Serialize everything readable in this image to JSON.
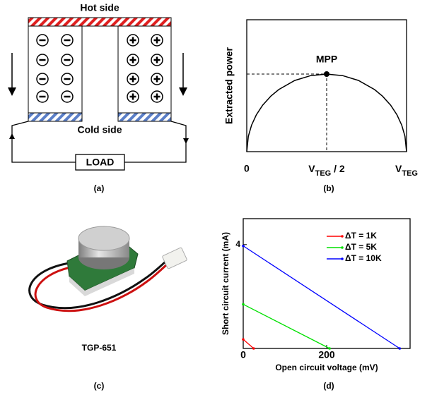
{
  "panel_labels": [
    "(a)",
    "(b)",
    "(c)",
    "(d)"
  ],
  "diagram_a": {
    "hot_side": "Hot side",
    "cold_side": "Cold side",
    "load": "LOAD"
  },
  "photo_c": {
    "caption": "TGP-651"
  },
  "chart_data": [
    {
      "type": "line",
      "y_label": "Extracted power",
      "color": "#000000",
      "x": [
        0,
        0.01,
        0.03,
        0.06,
        0.1,
        0.15,
        0.2,
        0.3,
        0.4,
        0.5,
        0.6,
        0.7,
        0.8,
        0.85,
        0.9,
        0.94,
        0.97,
        0.99,
        1
      ],
      "values": [
        0,
        0.199,
        0.341,
        0.475,
        0.6,
        0.714,
        0.8,
        0.917,
        0.98,
        1,
        0.98,
        0.917,
        0.8,
        0.714,
        0.6,
        0.475,
        0.341,
        0.199,
        0
      ],
      "xlim": [
        0,
        1
      ],
      "ylim": [
        0,
        1.7
      ],
      "xticks": [
        0,
        {
          "value": 0.5,
          "label": [
            "V",
            "TEG",
            " / 2"
          ]
        },
        {
          "value": 1,
          "label": [
            "V",
            "TEG"
          ]
        }
      ],
      "annotation": {
        "text": "MPP",
        "x": 0.5,
        "y": 1
      }
    },
    {
      "type": "line",
      "y_label": "Short circuit current (mA)",
      "x_label": "Open circuit voltage (mV)",
      "xlim": [
        0,
        400
      ],
      "ylim": [
        0,
        5
      ],
      "xticks": [
        0,
        200
      ],
      "yticks": [
        4
      ],
      "legend": "upper right",
      "series": [
        {
          "name": "ΔT = 1K",
          "color": "#ff0000",
          "x": [
            0,
            25
          ],
          "values": [
            0.35,
            0
          ]
        },
        {
          "name": "ΔT = 5K",
          "color": "#00e000",
          "x": [
            0,
            207
          ],
          "values": [
            1.7,
            0
          ]
        },
        {
          "name": "ΔT = 10K",
          "color": "#0000ff",
          "x": [
            0,
            375
          ],
          "values": [
            3.95,
            0
          ]
        }
      ]
    }
  ]
}
